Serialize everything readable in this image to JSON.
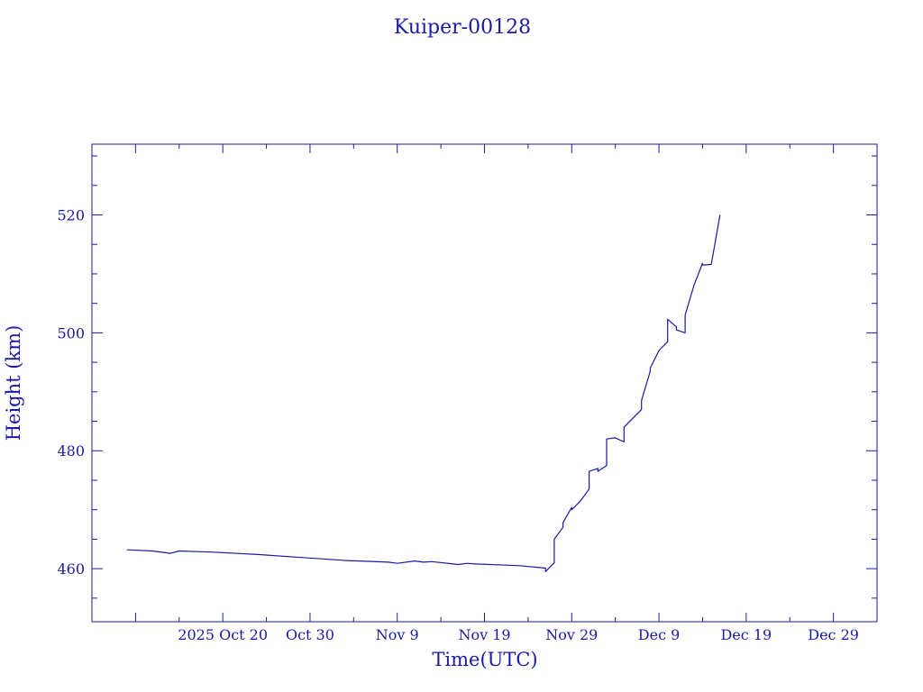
{
  "chart_data": {
    "type": "line",
    "title": "Kuiper-00128",
    "xlabel": "Time(UTC)",
    "ylabel": "Height (km)",
    "color": "#1a1aa6",
    "x_ticks": [
      "2025 Oct 20",
      "Oct 30",
      "Nov  9",
      "Nov 19",
      "Nov 29",
      "Dec  9",
      "Dec 19",
      "Dec 29"
    ],
    "xlim": [
      "2025-10-05",
      "2026-01-03"
    ],
    "ylim": [
      451,
      532
    ],
    "y_ticks": [
      460,
      480,
      500,
      520
    ],
    "y_minor_step": 5,
    "grid": false,
    "series": [
      {
        "x": [
          "2025-10-09",
          "2025-10-12",
          "2025-10-14",
          "2025-10-15",
          "2025-10-19",
          "2025-10-24",
          "2025-10-29",
          "2025-11-03",
          "2025-11-08",
          "2025-11-09",
          "2025-11-11",
          "2025-11-12",
          "2025-11-13",
          "2025-11-16",
          "2025-11-17",
          "2025-11-18",
          "2025-11-23",
          "2025-11-26",
          "2025-11-26",
          "2025-11-27",
          "2025-11-27",
          "2025-11-27",
          "2025-11-28",
          "2025-11-28",
          "2025-11-29",
          "2025-11-29",
          "2025-11-30",
          "2025-12-01",
          "2025-12-01",
          "2025-12-02",
          "2025-12-02",
          "2025-12-03",
          "2025-12-03",
          "2025-12-04",
          "2025-12-05",
          "2025-12-05",
          "2025-12-07",
          "2025-12-07",
          "2025-12-08",
          "2025-12-08",
          "2025-12-08",
          "2025-12-09",
          "2025-12-10",
          "2025-12-10",
          "2025-12-10",
          "2025-12-11",
          "2025-12-11",
          "2025-12-12",
          "2025-12-12",
          "2025-12-13",
          "2025-12-14",
          "2025-12-14",
          "2025-12-15",
          "2025-12-16"
        ],
        "values": [
          463.2,
          463.0,
          462.6,
          463.0,
          462.8,
          462.4,
          461.9,
          461.4,
          461.1,
          460.9,
          461.3,
          461.1,
          461.2,
          460.7,
          460.9,
          460.8,
          460.5,
          460.1,
          459.5,
          461.0,
          462.2,
          465.0,
          467.0,
          467.8,
          470.4,
          470.0,
          471.5,
          473.5,
          476.5,
          477.0,
          476.5,
          477.5,
          482.0,
          482.2,
          481.5,
          484.0,
          487.0,
          488.5,
          493.5,
          493.7,
          494.0,
          497.0,
          498.5,
          500.0,
          502.3,
          501.0,
          500.5,
          500.0,
          503.0,
          508.0,
          511.8,
          511.5,
          511.6,
          520.0
        ]
      }
    ]
  }
}
